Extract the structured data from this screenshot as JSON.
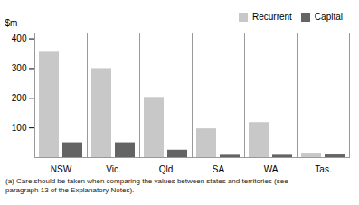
{
  "chart_data": {
    "type": "bar",
    "categories": [
      "NSW",
      "Vic.",
      "Qld",
      "SA",
      "WA",
      "Tas."
    ],
    "series": [
      {
        "name": "Recurrent",
        "color": "#c8c8c8",
        "values": [
          355,
          300,
          203,
          97,
          118,
          15
        ]
      },
      {
        "name": "Capital",
        "color": "#646464",
        "values": [
          50,
          50,
          25,
          8,
          8,
          9
        ]
      }
    ],
    "y_label": "$m",
    "ylim": [
      0,
      420
    ],
    "yticks": [
      100,
      200,
      300,
      400
    ],
    "legend": "upper right",
    "annotations": [
      "(a) Care should be taken when comparing the values between states and territories (see",
      "paragraph 13 of the Explanatory Notes)."
    ]
  }
}
